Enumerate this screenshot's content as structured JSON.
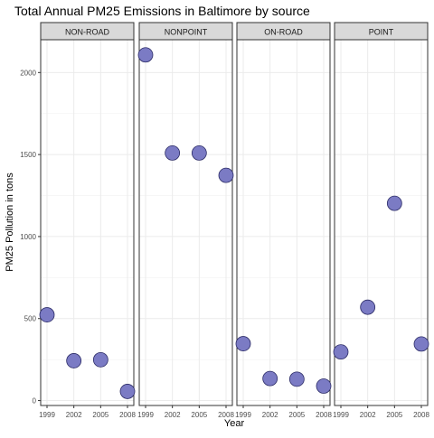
{
  "chart_data": {
    "type": "scatter",
    "title": "Total Annual PM25 Emissions in Baltimore by source",
    "xlabel": "Year",
    "ylabel": "PM25 Pollution in tons",
    "x_ticks": [
      "1999",
      "2002",
      "2005",
      "2008"
    ],
    "y_ticks": [
      0,
      500,
      1000,
      1500,
      2000
    ],
    "ylim": [
      -30,
      2200
    ],
    "grid": true,
    "colors": {
      "point_fill": "#7b7bc4",
      "point_stroke": "#2b2b66",
      "strip_bg": "#d9d9d9"
    },
    "facets": [
      {
        "label": "NON-ROAD",
        "x": [
          "1999",
          "2002",
          "2005",
          "2008"
        ],
        "values": [
          522.94,
          242.88,
          248.93,
          55.82
        ]
      },
      {
        "label": "NONPOINT",
        "x": [
          "1999",
          "2002",
          "2005",
          "2008"
        ],
        "values": [
          2107.63,
          1509.5,
          1509.5,
          1373.21
        ]
      },
      {
        "label": "ON-ROAD",
        "x": [
          "1999",
          "2002",
          "2005",
          "2008"
        ],
        "values": [
          346.82,
          134.31,
          130.43,
          88.28
        ]
      },
      {
        "label": "POINT",
        "x": [
          "1999",
          "2002",
          "2005",
          "2008"
        ],
        "values": [
          296.8,
          569.26,
          1202.49,
          344.98
        ]
      }
    ]
  }
}
